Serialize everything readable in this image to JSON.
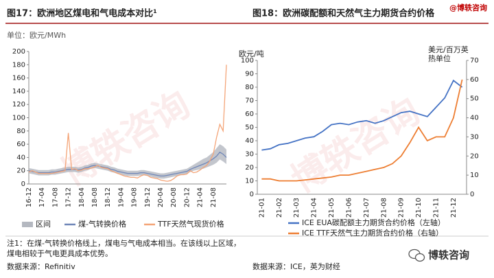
{
  "brand": "@博轶咨询",
  "watermark": "博轶咨询",
  "footer_brand": "博轶咨询",
  "notes": "注1：在煤-气转换价格线上，煤电与气电成本相当。在该线以上区域，煤电相较于气电更具成本优势。",
  "sources": [
    "数据来源：Refinitiv",
    "数据来源：ICE，英为财经"
  ],
  "chart_data": [
    {
      "type": "line",
      "title": "图17：欧洲地区煤电和气电成本对比¹",
      "subtitle": "单位：欧元/MWh",
      "categories": [
        "16-12",
        null,
        null,
        null,
        "17-04",
        null,
        null,
        null,
        "17-08",
        null,
        null,
        null,
        "17-12",
        null,
        null,
        null,
        "18-04",
        null,
        null,
        null,
        "18-08",
        null,
        null,
        null,
        "18-12",
        null,
        null,
        null,
        "19-04",
        null,
        null,
        null,
        "19-08",
        null,
        null,
        null,
        "19-12",
        null,
        null,
        null,
        "20-04",
        null,
        null,
        null,
        "20-08",
        null,
        null,
        null,
        "20-12",
        null,
        null,
        null,
        "21-04",
        null,
        null,
        null,
        "21-08",
        null,
        null,
        null,
        null
      ],
      "ylim": [
        0,
        200
      ],
      "yticks": [
        0,
        20,
        40,
        60,
        80,
        100,
        120,
        140,
        160,
        180,
        200
      ],
      "legend": "bottom",
      "series": [
        {
          "name": "区间",
          "kind": "band",
          "color": "#b4b8c0",
          "values": [
            24,
            23,
            22,
            21,
            21,
            21,
            21,
            22,
            22,
            23,
            24,
            25,
            26,
            26,
            26,
            25,
            26,
            28,
            29,
            31,
            32,
            31,
            30,
            29,
            28,
            26,
            25,
            23,
            22,
            21,
            20,
            20,
            20,
            20,
            21,
            21,
            20,
            19,
            18,
            17,
            16,
            16,
            17,
            18,
            19,
            20,
            21,
            22,
            23,
            26,
            29,
            32,
            35,
            38,
            40,
            44,
            48,
            54,
            60,
            57,
            52
          ],
          "lower": [
            16,
            15,
            14,
            13,
            13,
            13,
            13,
            14,
            14,
            15,
            16,
            17,
            18,
            18,
            18,
            17,
            18,
            20,
            21,
            23,
            24,
            23,
            22,
            21,
            20,
            18,
            17,
            15,
            14,
            13,
            12,
            12,
            12,
            12,
            13,
            13,
            12,
            11,
            10,
            9,
            8,
            8,
            9,
            10,
            11,
            12,
            13,
            14,
            15,
            18,
            20,
            21,
            22,
            23,
            25,
            27,
            29,
            32,
            37,
            34,
            30
          ]
        },
        {
          "name": "煤-气转换价格",
          "color": "#6f86b8",
          "values": [
            20,
            19,
            18,
            17,
            17,
            17,
            17,
            18,
            18,
            19,
            20,
            21,
            22,
            22,
            22,
            21,
            22,
            24,
            25,
            27,
            28,
            27,
            26,
            25,
            24,
            22,
            21,
            19,
            18,
            17,
            16,
            16,
            16,
            16,
            17,
            17,
            16,
            15,
            14,
            13,
            12,
            12,
            13,
            14,
            15,
            16,
            17,
            18,
            19,
            22,
            24,
            26,
            28,
            30,
            32,
            35,
            38,
            42,
            48,
            45,
            40
          ]
        },
        {
          "name": "TTF天然气现货价格",
          "color": "#f4a477",
          "values": [
            18,
            20,
            18,
            16,
            16,
            16,
            16,
            16,
            17,
            18,
            19,
            20,
            77,
            22,
            23,
            20,
            21,
            23,
            23,
            24,
            26,
            28,
            25,
            24,
            23,
            20,
            18,
            16,
            14,
            12,
            11,
            10,
            10,
            9,
            12,
            14,
            13,
            10,
            9,
            8,
            6,
            5,
            4,
            5,
            8,
            12,
            14,
            14,
            15,
            20,
            17,
            18,
            21,
            25,
            28,
            35,
            45,
            70,
            90,
            80,
            180
          ]
        }
      ]
    },
    {
      "type": "line",
      "title": "图18：欧洲碳配额和天然气主力期货合约价格",
      "y_label": "欧元/吨",
      "y2_label": "美元/百万英热单位",
      "categories": [
        "21-01",
        null,
        "21-02",
        null,
        "21-03",
        null,
        "21-04",
        null,
        "21-05",
        null,
        "21-06",
        null,
        "21-07",
        null,
        "21-08",
        null,
        "21-09",
        null,
        "21-10",
        null,
        "21-11",
        null,
        "21-12",
        null
      ],
      "ylim": [
        0,
        100
      ],
      "yticks": [
        0,
        10,
        20,
        30,
        40,
        50,
        60,
        70,
        80,
        90,
        100
      ],
      "y2lim": [
        0,
        70
      ],
      "y2ticks": [
        0,
        10,
        20,
        30,
        40,
        50,
        60,
        70
      ],
      "legend": "bottom",
      "series": [
        {
          "name": "ICE EUA碳配额主力期货合约价格（左轴）",
          "color": "#4472c4",
          "values": [
            33,
            34,
            37,
            38,
            40,
            42,
            43,
            47,
            52,
            53,
            52,
            54,
            55,
            53,
            55,
            58,
            61,
            62,
            60,
            58,
            65,
            72,
            85,
            80
          ]
        },
        {
          "name": "ICE TTF天然气主力期货合约价格（右轴）",
          "color": "#ed7d31",
          "axis": "y2",
          "values": [
            8,
            8,
            7,
            7,
            7,
            7.5,
            8,
            8.5,
            9,
            10,
            10,
            11,
            12,
            13,
            14,
            16,
            20,
            27,
            35,
            28,
            30,
            30,
            40,
            60
          ]
        }
      ]
    }
  ]
}
